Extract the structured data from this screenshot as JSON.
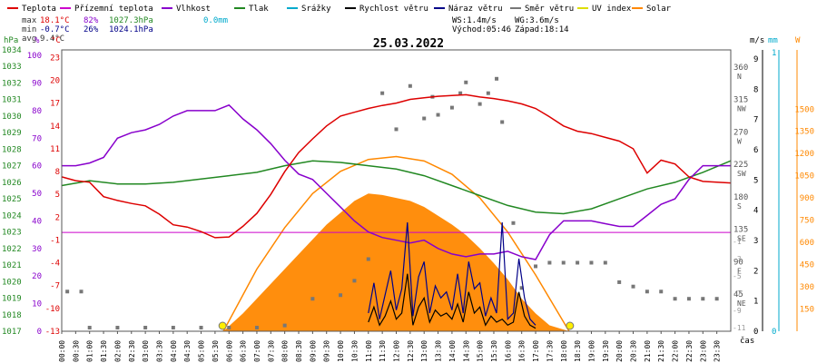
{
  "chart_data": {
    "type": "line",
    "title": "25.03.2022",
    "legend": [
      {
        "name": "Teplota",
        "color": "#dd0000"
      },
      {
        "name": "Přízemní teplota",
        "color": "#cc00cc"
      },
      {
        "name": "Vlhkost",
        "color": "#8800cc"
      },
      {
        "name": "Tlak",
        "color": "#228822"
      },
      {
        "name": "Srážky",
        "color": "#00aacc"
      },
      {
        "name": "Rychlost větru",
        "color": "#000000"
      },
      {
        "name": "Náraz větru",
        "color": "#000088"
      },
      {
        "name": "Směr větru",
        "color": "#777777"
      },
      {
        "name": "UV index",
        "color": "#dddd00"
      },
      {
        "name": "Solar",
        "color": "#ff8800"
      }
    ],
    "stats": {
      "max_label": "max",
      "max_temp": "18.1°C",
      "max_hum": "82%",
      "max_press": "1027.3hPa",
      "max_rain": "0.0mm",
      "min_label": "min",
      "min_temp": "-0.7°C",
      "min_hum": "26%",
      "min_press": "1024.1hPa",
      "avg_label": "avg",
      "avg_temp": "9.4°C",
      "ws": "WS:1.4m/s",
      "wg": "WG:3.6m/s",
      "sunrise": "Východ:05:46",
      "sunset": "Západ:18:14"
    },
    "x_ticks": [
      "00:00",
      "00:30",
      "01:00",
      "01:30",
      "02:00",
      "02:30",
      "03:00",
      "03:30",
      "04:00",
      "04:30",
      "05:00",
      "05:30",
      "06:00",
      "06:30",
      "07:00",
      "07:30",
      "08:00",
      "08:30",
      "09:00",
      "09:30",
      "10:00",
      "10:30",
      "11:00",
      "11:30",
      "12:00",
      "12:30",
      "13:00",
      "13:30",
      "14:00",
      "14:30",
      "15:00",
      "15:30",
      "16:00",
      "16:30",
      "17:00",
      "17:30",
      "18:00",
      "18:30",
      "19:00",
      "19:30",
      "20:00",
      "20:30",
      "21:00",
      "21:30",
      "22:00",
      "22:30",
      "23:00",
      "23:30"
    ],
    "x_unit": "čas",
    "axis_units": {
      "press": "hPa",
      "hum": "%",
      "temp": "°C",
      "wind": "m/s",
      "rain": "mm",
      "solar": "W"
    },
    "press_ticks": [
      "1034",
      "1033",
      "1032",
      "1031",
      "1030",
      "1029",
      "1028",
      "1027",
      "1026",
      "1025",
      "1024",
      "1023",
      "1022",
      "1021",
      "1020",
      "1019",
      "1018",
      "1017"
    ],
    "press_range": [
      1017,
      1034
    ],
    "hum_ticks": [
      "100",
      "90",
      "80",
      "70",
      "60",
      "50",
      "40",
      "30",
      "20",
      "10",
      "0"
    ],
    "temp_ticks": [
      "23",
      "20",
      "17",
      "14",
      "11",
      "8",
      "5",
      "2",
      "-1",
      "-4",
      "-7",
      "-10",
      "-13"
    ],
    "dir_ticks": [
      {
        "deg": "360",
        "lab": "N"
      },
      {
        "deg": "315",
        "lab": "NW"
      },
      {
        "deg": "270",
        "lab": "W"
      },
      {
        "deg": "225",
        "lab": "SW"
      },
      {
        "deg": "180",
        "lab": "S"
      },
      {
        "deg": "135",
        "lab": "SE"
      },
      {
        "deg": "90",
        "lab": "E"
      },
      {
        "deg": "45",
        "lab": "NE"
      }
    ],
    "wind_ticks": [
      "9",
      "8",
      "7",
      "6",
      "5",
      "4",
      "3",
      "2",
      "1",
      "0"
    ],
    "rain_ticks": [
      "1",
      "0"
    ],
    "solar_ticks": [
      "1500",
      "1350",
      "1200",
      "1050",
      "900",
      "750",
      "600",
      "450",
      "300",
      "150"
    ],
    "right_temp_ticks": [
      "-1",
      "-3",
      "-5",
      "-7",
      "-9",
      "-11"
    ],
    "temperature": {
      "x": [
        0,
        0.5,
        1,
        1.5,
        2,
        2.5,
        3,
        3.5,
        4,
        4.5,
        5,
        5.5,
        6,
        6.5,
        7,
        7.5,
        8,
        8.5,
        9,
        9.5,
        10,
        10.5,
        11,
        11.5,
        12,
        12.5,
        13,
        13.5,
        14,
        14.5,
        15,
        15.5,
        16,
        16.5,
        17,
        17.5,
        18,
        18.5,
        19,
        19.5,
        20,
        20.5,
        21,
        21.5,
        22,
        22.5,
        23,
        23.5,
        24
      ],
      "values": [
        7.3,
        6.8,
        6.6,
        4.7,
        4.2,
        3.8,
        3.5,
        2.4,
        1.0,
        0.7,
        0.1,
        -0.7,
        -0.6,
        0.8,
        2.5,
        5.0,
        8.0,
        10.5,
        12.3,
        14.0,
        15.3,
        15.8,
        16.3,
        16.7,
        17.0,
        17.5,
        17.7,
        17.9,
        18.0,
        18.1,
        17.8,
        17.6,
        17.3,
        16.9,
        16.3,
        15.2,
        14.0,
        13.3,
        13.0,
        12.5,
        12.0,
        11.0,
        7.8,
        9.5,
        9.0,
        7.3,
        6.7,
        6.6,
        6.5
      ]
    },
    "humidity": {
      "x": [
        0,
        0.5,
        1,
        1.5,
        2,
        2.5,
        3,
        3.5,
        4,
        4.5,
        5,
        5.5,
        6,
        6.5,
        7,
        7.5,
        8,
        8.5,
        9,
        9.5,
        10,
        10.5,
        11,
        11.5,
        12,
        12.5,
        13,
        13.5,
        14,
        14.5,
        15,
        15.5,
        16,
        16.5,
        17,
        17.5,
        18,
        18.5,
        19,
        19.5,
        20,
        20.5,
        21,
        21.5,
        22,
        22.5,
        23,
        23.5,
        24
      ],
      "values": [
        60,
        60,
        61,
        63,
        70,
        72,
        73,
        75,
        78,
        80,
        80,
        80,
        82,
        77,
        73,
        68,
        62,
        57,
        55,
        50,
        45,
        40,
        36,
        34,
        33,
        32,
        33,
        30,
        28,
        27,
        28,
        28,
        29,
        27,
        26,
        35,
        40,
        40,
        40,
        39,
        38,
        38,
        42,
        46,
        48,
        55,
        60,
        60,
        60
      ]
    },
    "pressure": {
      "x": [
        0,
        1,
        2,
        3,
        4,
        5,
        6,
        7,
        8,
        9,
        10,
        11,
        12,
        13,
        14,
        15,
        16,
        17,
        18,
        19,
        20,
        21,
        22,
        23,
        24
      ],
      "values": [
        1025.8,
        1026.1,
        1025.9,
        1025.9,
        1026.0,
        1026.2,
        1026.4,
        1026.6,
        1027.0,
        1027.3,
        1027.2,
        1027.0,
        1026.8,
        1026.4,
        1025.8,
        1025.2,
        1024.6,
        1024.2,
        1024.1,
        1024.4,
        1025.0,
        1025.6,
        1026.0,
        1026.6,
        1027.3
      ]
    },
    "ground_temp_hline": 0,
    "wind_speed": {
      "x": [
        11.0,
        11.2,
        11.4,
        11.6,
        11.8,
        12.0,
        12.2,
        12.4,
        12.6,
        12.8,
        13.0,
        13.2,
        13.4,
        13.6,
        13.8,
        14.0,
        14.2,
        14.4,
        14.6,
        14.8,
        15.0,
        15.2,
        15.4,
        15.6,
        15.8,
        16.0,
        16.2,
        16.4,
        16.6,
        16.8,
        17.0
      ],
      "values": [
        0.3,
        0.8,
        0.2,
        0.5,
        1.0,
        0.4,
        0.6,
        1.9,
        0.2,
        0.8,
        1.1,
        0.3,
        0.7,
        0.5,
        0.6,
        0.4,
        0.9,
        0.3,
        1.3,
        0.6,
        0.8,
        0.2,
        0.5,
        0.3,
        0.4,
        0.2,
        0.3,
        1.3,
        0.5,
        0.2,
        0.1
      ]
    },
    "wind_gust": {
      "x": [
        11.0,
        11.2,
        11.4,
        11.6,
        11.8,
        12.0,
        12.2,
        12.4,
        12.6,
        12.8,
        13.0,
        13.2,
        13.4,
        13.6,
        13.8,
        14.0,
        14.2,
        14.4,
        14.6,
        14.8,
        15.0,
        15.2,
        15.4,
        15.6,
        15.8,
        16.0,
        16.2,
        16.4,
        16.6,
        16.8,
        17.0
      ],
      "values": [
        0.6,
        1.6,
        0.4,
        1.2,
        2.0,
        0.7,
        1.4,
        3.6,
        0.5,
        1.8,
        2.3,
        0.6,
        1.5,
        1.1,
        1.3,
        0.7,
        1.9,
        0.6,
        2.3,
        1.4,
        1.6,
        0.5,
        1.1,
        0.6,
        3.6,
        0.4,
        0.6,
        2.4,
        1.1,
        0.4,
        0.2
      ]
    },
    "solar": {
      "x": [
        5.8,
        6.5,
        7.5,
        8.5,
        9.5,
        10.5,
        11.0,
        11.5,
        12.0,
        12.5,
        13.0,
        13.5,
        14.0,
        14.5,
        15.0,
        15.5,
        16.0,
        16.5,
        17.0,
        17.5,
        18.2
      ],
      "values": [
        0,
        120,
        320,
        520,
        720,
        880,
        930,
        920,
        900,
        880,
        840,
        780,
        720,
        650,
        560,
        460,
        350,
        220,
        120,
        40,
        0
      ]
    },
    "solar_theoretical": {
      "x": [
        5.8,
        7,
        8,
        9,
        10,
        11,
        12,
        13,
        14,
        15,
        16,
        17,
        18.2
      ],
      "values": [
        0,
        420,
        700,
        930,
        1080,
        1160,
        1180,
        1150,
        1060,
        900,
        670,
        380,
        0
      ]
    },
    "wind_dir_samples": [
      {
        "h": 0.2,
        "deg": 55
      },
      {
        "h": 0.7,
        "deg": 55
      },
      {
        "h": 1.0,
        "deg": 5
      },
      {
        "h": 2,
        "deg": 5
      },
      {
        "h": 3,
        "deg": 5
      },
      {
        "h": 4,
        "deg": 5
      },
      {
        "h": 5,
        "deg": 5
      },
      {
        "h": 6,
        "deg": 5
      },
      {
        "h": 7,
        "deg": 5
      },
      {
        "h": 8,
        "deg": 8
      },
      {
        "h": 9,
        "deg": 45
      },
      {
        "h": 10,
        "deg": 50
      },
      {
        "h": 10.5,
        "deg": 70
      },
      {
        "h": 11.0,
        "deg": 100
      },
      {
        "h": 11.5,
        "deg": 330
      },
      {
        "h": 12.0,
        "deg": 280
      },
      {
        "h": 12.5,
        "deg": 340
      },
      {
        "h": 13.0,
        "deg": 295
      },
      {
        "h": 13.3,
        "deg": 325
      },
      {
        "h": 13.5,
        "deg": 300
      },
      {
        "h": 14.0,
        "deg": 310
      },
      {
        "h": 14.3,
        "deg": 330
      },
      {
        "h": 14.5,
        "deg": 345
      },
      {
        "h": 15.0,
        "deg": 315
      },
      {
        "h": 15.3,
        "deg": 330
      },
      {
        "h": 15.6,
        "deg": 350
      },
      {
        "h": 15.8,
        "deg": 290
      },
      {
        "h": 16.2,
        "deg": 150
      },
      {
        "h": 16.5,
        "deg": 60
      },
      {
        "h": 17.0,
        "deg": 90
      },
      {
        "h": 17.5,
        "deg": 95
      },
      {
        "h": 18.0,
        "deg": 95
      },
      {
        "h": 18.5,
        "deg": 95
      },
      {
        "h": 19.0,
        "deg": 95
      },
      {
        "h": 19.5,
        "deg": 95
      },
      {
        "h": 20.0,
        "deg": 68
      },
      {
        "h": 20.5,
        "deg": 62
      },
      {
        "h": 21.0,
        "deg": 55
      },
      {
        "h": 21.5,
        "deg": 55
      },
      {
        "h": 22.0,
        "deg": 45
      },
      {
        "h": 22.5,
        "deg": 45
      },
      {
        "h": 23.0,
        "deg": 45
      },
      {
        "h": 23.5,
        "deg": 45
      }
    ],
    "ranges": {
      "temp": [
        -13,
        24
      ],
      "hum": [
        0,
        102
      ],
      "wind": [
        0,
        9.3
      ],
      "solar": [
        0,
        1900
      ],
      "dir": [
        0,
        390
      ]
    },
    "grid": false
  }
}
